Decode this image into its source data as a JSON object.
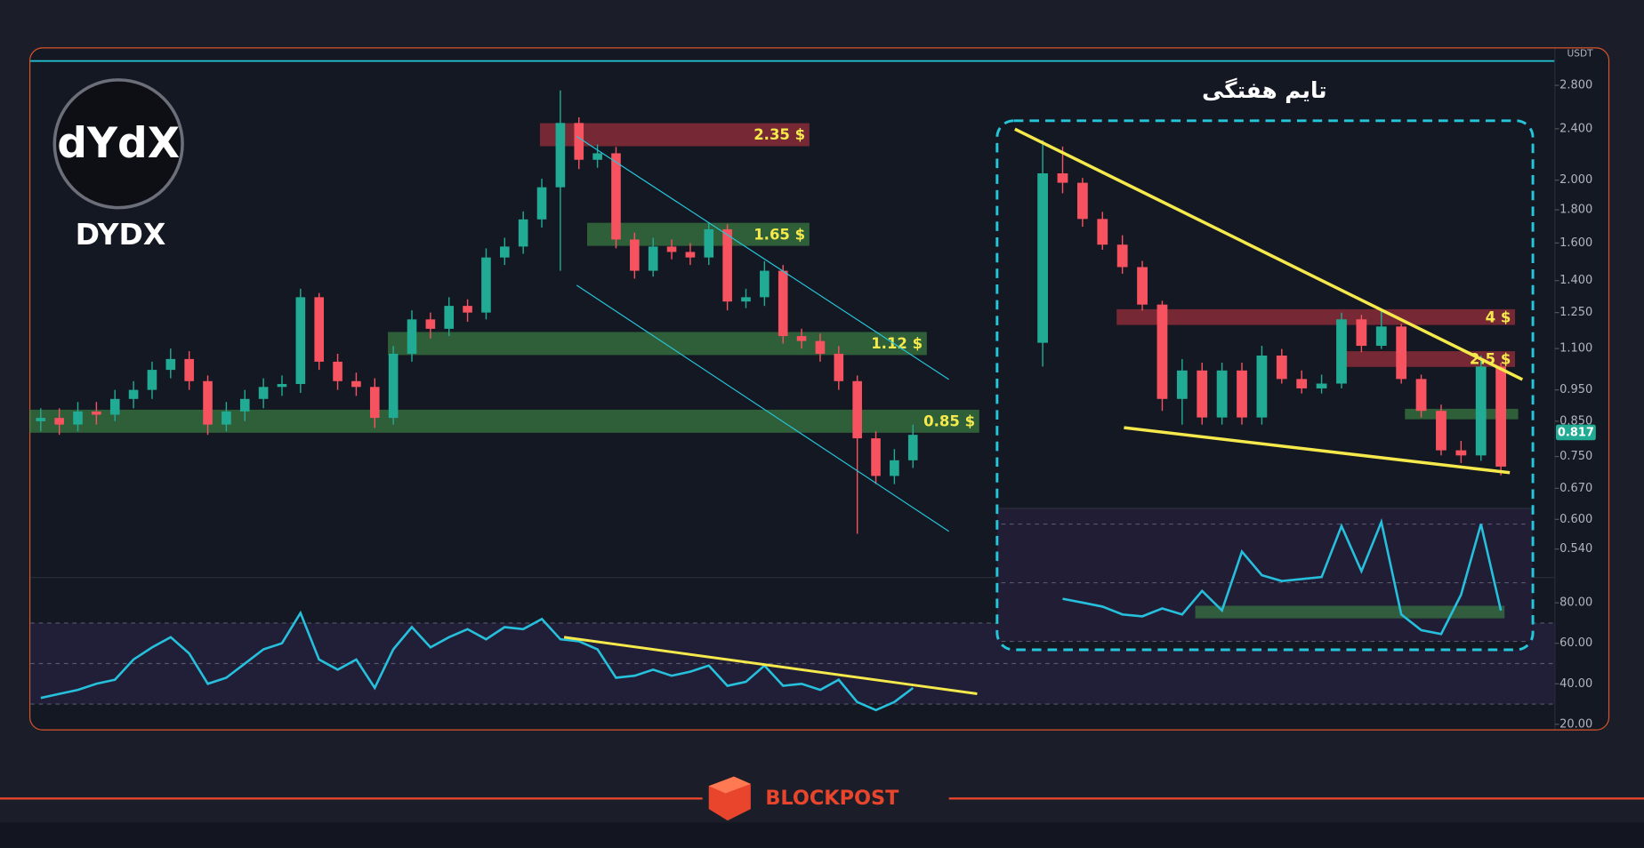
{
  "header": {
    "logo_mark": "dYdX",
    "symbol": "DYDX",
    "currency": "USDT",
    "footer_brand": "BLOCKPOST"
  },
  "chart_data": [
    {
      "type": "candlestick",
      "log": true,
      "up_color": "#22ab94",
      "down_color": "#f7525f",
      "label_color": "#f5e94c",
      "open": [
        0.85,
        0.86,
        0.84,
        0.88,
        0.87,
        0.92,
        0.95,
        1.02,
        1.06,
        0.98,
        0.84,
        0.88,
        0.92,
        0.96,
        0.97,
        1.32,
        1.05,
        0.98,
        0.96,
        0.86,
        1.08,
        1.22,
        1.18,
        1.28,
        1.25,
        1.52,
        1.58,
        1.74,
        1.95,
        2.45,
        2.15,
        2.2,
        1.62,
        1.45,
        1.58,
        1.55,
        1.52,
        1.68,
        1.3,
        1.32,
        1.45,
        1.15,
        1.13,
        1.08,
        0.98,
        0.8,
        0.7,
        0.74
      ],
      "high": [
        0.89,
        0.89,
        0.91,
        0.91,
        0.95,
        0.98,
        1.05,
        1.1,
        1.09,
        1.0,
        0.91,
        0.95,
        0.99,
        1.0,
        1.36,
        1.34,
        1.08,
        1.01,
        0.99,
        1.11,
        1.26,
        1.25,
        1.32,
        1.31,
        1.57,
        1.63,
        1.79,
        2.01,
        2.75,
        2.5,
        2.27,
        2.25,
        1.66,
        1.63,
        1.62,
        1.6,
        1.72,
        1.71,
        1.36,
        1.5,
        1.48,
        1.18,
        1.16,
        1.11,
        1.0,
        0.82,
        0.77,
        0.84
      ],
      "low": [
        0.82,
        0.81,
        0.82,
        0.84,
        0.85,
        0.89,
        0.92,
        0.99,
        0.95,
        0.81,
        0.82,
        0.85,
        0.89,
        0.93,
        0.94,
        1.02,
        0.95,
        0.93,
        0.83,
        0.84,
        1.05,
        1.14,
        1.15,
        1.21,
        1.22,
        1.48,
        1.54,
        1.69,
        1.45,
        2.08,
        2.09,
        1.57,
        1.41,
        1.42,
        1.51,
        1.48,
        1.48,
        1.26,
        1.27,
        1.28,
        1.12,
        1.1,
        1.05,
        0.95,
        0.57,
        0.68,
        0.68,
        0.72
      ],
      "close": [
        0.86,
        0.84,
        0.88,
        0.87,
        0.92,
        0.95,
        1.02,
        1.06,
        0.98,
        0.84,
        0.88,
        0.92,
        0.96,
        0.97,
        1.32,
        1.05,
        0.98,
        0.96,
        0.86,
        1.08,
        1.22,
        1.18,
        1.28,
        1.25,
        1.52,
        1.58,
        1.74,
        1.95,
        2.45,
        2.15,
        2.2,
        1.62,
        1.45,
        1.58,
        1.55,
        1.52,
        1.68,
        1.3,
        1.32,
        1.45,
        1.15,
        1.13,
        1.08,
        0.98,
        0.8,
        0.7,
        0.74,
        0.81
      ],
      "ylim": [
        0.49,
        3.03
      ],
      "yticks": [
        {
          "value": 2.8,
          "label": "2.800"
        },
        {
          "value": 2.4,
          "label": "2.400"
        },
        {
          "value": 2.0,
          "label": "2.000"
        },
        {
          "value": 1.8,
          "label": "1.800"
        },
        {
          "value": 1.6,
          "label": "1.600"
        },
        {
          "value": 1.4,
          "label": "1.400"
        },
        {
          "value": 1.25,
          "label": "1.250"
        },
        {
          "value": 1.1,
          "label": "1.100"
        },
        {
          "value": 0.95,
          "label": "0.950"
        },
        {
          "value": 0.85,
          "label": "0.850"
        },
        {
          "value": 0.75,
          "label": "0.750"
        },
        {
          "value": 0.67,
          "label": "0.670"
        },
        {
          "value": 0.6,
          "label": "0.600"
        },
        {
          "value": 0.54,
          "label": "0.540"
        }
      ],
      "last_price": {
        "value": 0.817,
        "label": "0.817"
      },
      "last_price_color": "#22ab94",
      "levels": [
        {
          "value": 2.35,
          "label": "2.35 $",
          "color": "#b8333f"
        },
        {
          "value": 1.65,
          "label": "1.65 $",
          "color": "#3f8f46"
        },
        {
          "value": 1.12,
          "label": "1.12 $",
          "color": "#3f8f46"
        },
        {
          "value": 0.85,
          "label": "0.85 $",
          "color": "#3f8f46"
        }
      ],
      "rsi": {
        "color": "#26c0dc",
        "values": [
          33,
          35,
          37,
          40,
          42,
          52,
          58,
          63,
          55,
          40,
          43,
          50,
          57,
          60,
          75,
          52,
          47,
          52,
          38,
          57,
          68,
          58,
          63,
          67,
          62,
          68,
          67,
          72,
          62,
          61,
          57,
          43,
          44,
          47,
          44,
          46,
          49,
          39,
          41,
          49,
          39,
          40,
          37,
          42,
          31,
          27,
          31,
          38
        ],
        "ylim": [
          18,
          92
        ],
        "yticks": [
          {
            "value": 80,
            "label": "80.00"
          },
          {
            "value": 60,
            "label": "60.00"
          },
          {
            "value": 40,
            "label": "40.00"
          },
          {
            "value": 20,
            "label": "20.00"
          }
        ],
        "bands": [
          30,
          50,
          70
        ]
      }
    },
    {
      "type": "candlestick",
      "title": "تایم هفتگی",
      "log": true,
      "up_color": "#22ab94",
      "down_color": "#f7525f",
      "label_color": "#f5e94c",
      "open": [
        3.0,
        20,
        18,
        12,
        9,
        7,
        4.6,
        1.6,
        2.2,
        1.3,
        2.2,
        1.3,
        2.6,
        2.0,
        1.8,
        1.9,
        3.9,
        2.9,
        3.6,
        2.0,
        1.4,
        0.9,
        0.85,
        2.3
      ],
      "high": [
        29,
        27,
        19,
        13,
        10,
        7.5,
        4.8,
        2.5,
        2.4,
        2.4,
        2.4,
        2.9,
        2.8,
        2.2,
        2.1,
        4.2,
        4.1,
        4.3,
        3.7,
        2.1,
        1.5,
        1.0,
        2.6,
        2.4
      ],
      "low": [
        2.3,
        16,
        11,
        8.5,
        6.5,
        4.3,
        1.4,
        1.2,
        1.2,
        1.2,
        1.2,
        1.2,
        1.9,
        1.7,
        1.7,
        1.8,
        2.7,
        2.8,
        1.9,
        1.3,
        0.85,
        0.78,
        0.8,
        0.68
      ],
      "close": [
        20,
        18,
        12,
        9,
        7,
        4.6,
        1.6,
        2.2,
        1.3,
        2.2,
        1.3,
        2.6,
        2.0,
        1.8,
        1.9,
        3.9,
        2.9,
        3.6,
        2.0,
        1.4,
        0.9,
        0.85,
        2.3,
        0.75
      ],
      "ylim": [
        0.47,
        34
      ],
      "levels": [
        {
          "value": 4,
          "label": "4 $",
          "color": "#b8333f"
        },
        {
          "value": 2.5,
          "label": "2.5 $",
          "color": "#b8333f"
        }
      ],
      "rsi": {
        "color": "#26c0dc",
        "values": [
          null,
          46,
          44,
          42,
          38,
          37,
          41,
          38,
          50,
          40,
          70,
          58,
          55,
          56,
          57,
          83,
          60,
          85,
          38,
          30,
          28,
          48,
          84,
          40
        ],
        "ylim": [
          20,
          92
        ]
      }
    }
  ]
}
